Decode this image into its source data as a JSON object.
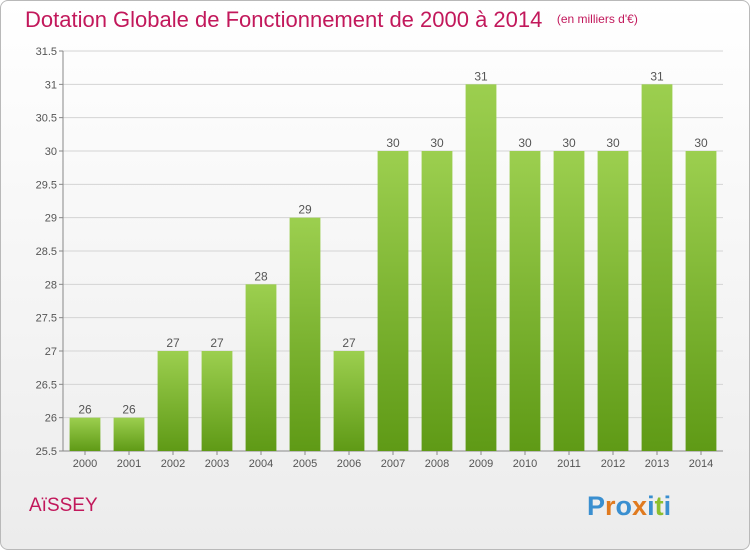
{
  "chart_data": {
    "type": "bar",
    "title": "Dotation Globale de Fonctionnement de 2000 à 2014",
    "subtitle": "(en milliers d'€)",
    "categories": [
      "2000",
      "2001",
      "2002",
      "2003",
      "2004",
      "2005",
      "2006",
      "2007",
      "2008",
      "2009",
      "2010",
      "2011",
      "2012",
      "2013",
      "2014"
    ],
    "values": [
      26,
      26,
      27,
      27,
      28,
      29,
      27,
      30,
      30,
      31,
      30,
      30,
      30,
      31,
      30
    ],
    "value_labels": [
      "26",
      "26",
      "27",
      "27",
      "28",
      "29",
      "27",
      "30",
      "30",
      "31",
      "30",
      "30",
      "30",
      "31",
      "30"
    ],
    "ylim": [
      25.5,
      31.5
    ],
    "yticks": [
      25.5,
      26,
      26.5,
      27,
      27.5,
      28,
      28.5,
      29,
      29.5,
      30,
      30.5,
      31,
      31.5
    ],
    "ytick_labels": [
      "25.5",
      "26",
      "26.5",
      "27",
      "27.5",
      "28",
      "28.5",
      "29",
      "29.5",
      "30",
      "30.5",
      "31",
      "31.5"
    ],
    "grid": true,
    "xlabel": "",
    "ylabel": "",
    "bar_color_top": "#9ccf4f",
    "bar_color_bottom": "#5f9a16"
  },
  "commune": "AïSSEY",
  "logo": {
    "letters": [
      "P",
      "r",
      "o",
      "x",
      "i",
      "t",
      "i"
    ],
    "colors": [
      "#3a8fd0",
      "#e07a1f",
      "#3a8fd0",
      "#e07a1f",
      "#3a8fd0",
      "#8cbf2e",
      "#3a8fd0"
    ]
  }
}
